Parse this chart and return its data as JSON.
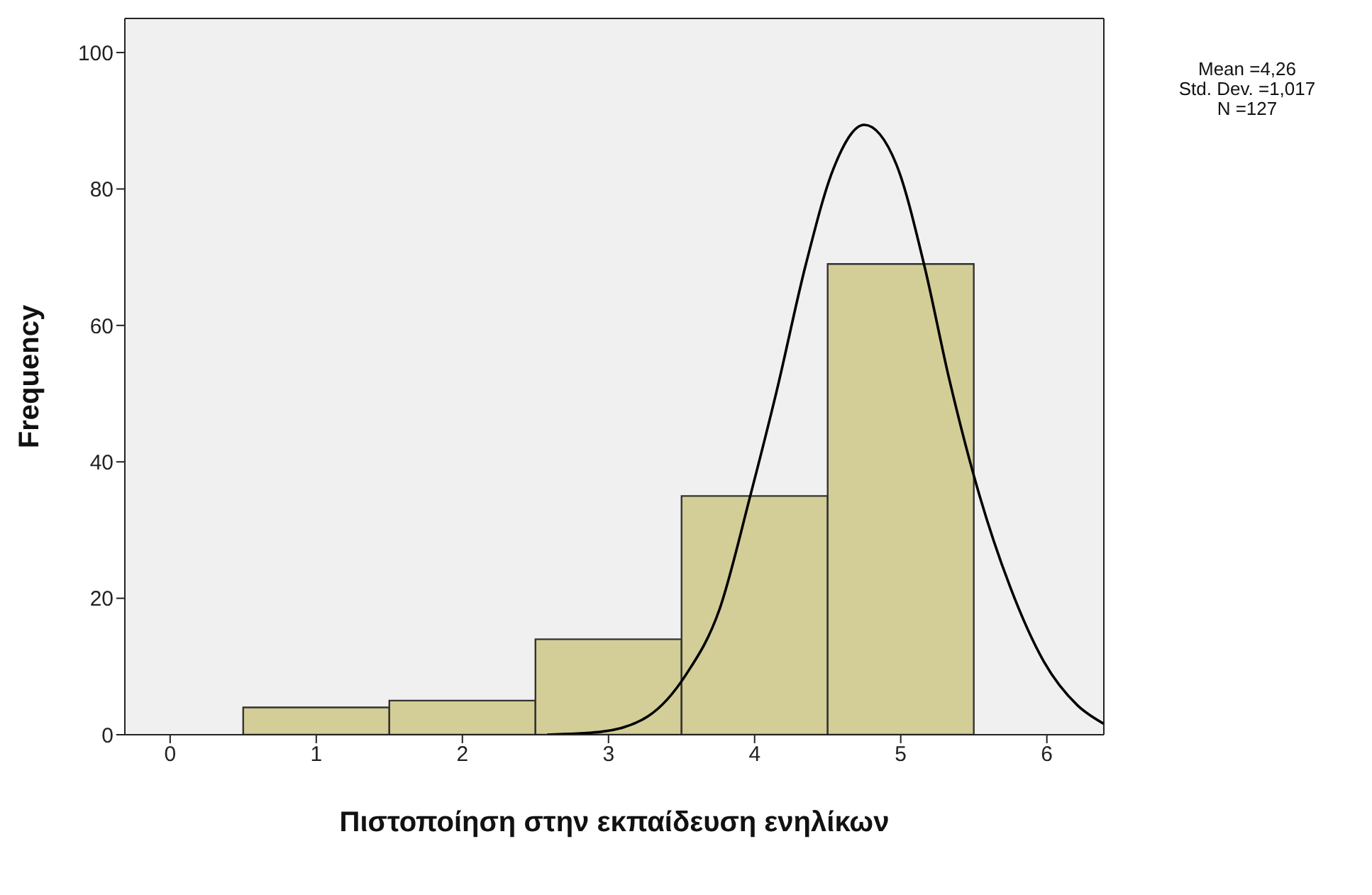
{
  "chart_data": {
    "type": "histogram",
    "xlabel": "Πιστοποίηση στην  εκπαίδευση ενηλίκων",
    "ylabel": "Frequency",
    "bins": [
      0.5,
      1.5,
      2.5,
      3.5,
      4.5,
      5.5
    ],
    "values": [
      4,
      5,
      14,
      35,
      69
    ],
    "color": "#d3ce97",
    "series": [
      {
        "type": "line",
        "color": "#000000",
        "x": [
          2.58,
          2.94,
          3.27,
          3.53,
          3.76,
          3.97,
          4.15,
          4.35,
          4.54,
          4.75,
          4.97,
          5.16,
          5.33,
          5.54,
          5.75,
          5.98,
          6.21,
          6.39
        ],
        "values": [
          0,
          0.4,
          2.7,
          8.8,
          18.4,
          35,
          50.3,
          68.9,
          83,
          89.4,
          83.6,
          68.9,
          52.3,
          35,
          21.6,
          10.7,
          4.3,
          1.6
        ]
      }
    ],
    "xlim": [
      -0.31,
      6.39
    ],
    "xticks": [
      0,
      1,
      2,
      3,
      4,
      5,
      6
    ],
    "ylim": [
      0,
      105
    ],
    "yticks": [
      0,
      20,
      40,
      60,
      80,
      100
    ],
    "marker": "none",
    "annotations": [
      "Mean =4,26",
      "Std. Dev. =1,017",
      "N =127"
    ]
  }
}
